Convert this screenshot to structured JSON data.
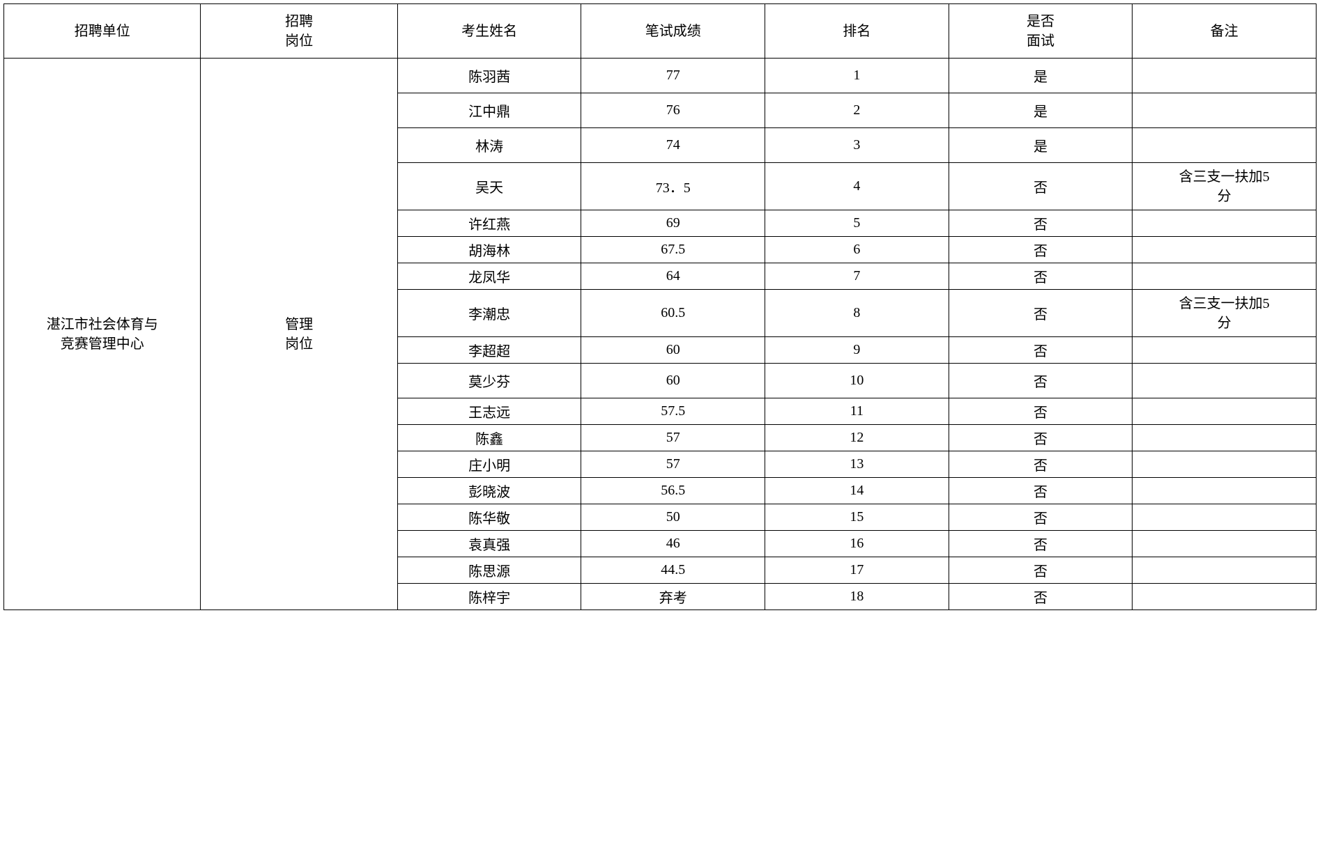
{
  "table": {
    "columns": {
      "unit": "招聘单位",
      "position_line1": "招聘",
      "position_line2": "岗位",
      "name": "考生姓名",
      "score": "笔试成绩",
      "rank": "排名",
      "interview_line1": "是否",
      "interview_line2": "面试",
      "remark": "备注"
    },
    "unit_line1": "湛江市社会体育与",
    "unit_line2": "竞赛管理中心",
    "position_line1": "管理",
    "position_line2": "岗位",
    "rows": [
      {
        "name": "陈羽茜",
        "score": "77",
        "rank": "1",
        "interview": "是",
        "remark": "",
        "height": "medium"
      },
      {
        "name": "江中鼎",
        "score": "76",
        "rank": "2",
        "interview": "是",
        "remark": "",
        "height": "medium"
      },
      {
        "name": "林涛",
        "score": "74",
        "rank": "3",
        "interview": "是",
        "remark": "",
        "height": "medium"
      },
      {
        "name": "吴天",
        "score": "73．5",
        "rank": "4",
        "interview": "否",
        "remark_line1": "含三支一扶加5",
        "remark_line2": "分",
        "height": "tall"
      },
      {
        "name": "许红燕",
        "score": "69",
        "rank": "5",
        "interview": "否",
        "remark": "",
        "height": "short"
      },
      {
        "name": "胡海林",
        "score": "67.5",
        "rank": "6",
        "interview": "否",
        "remark": "",
        "height": "short"
      },
      {
        "name": "龙凤华",
        "score": "64",
        "rank": "7",
        "interview": "否",
        "remark": "",
        "height": "short"
      },
      {
        "name": "李潮忠",
        "score": "60.5",
        "rank": "8",
        "interview": "否",
        "remark_line1": "含三支一扶加5",
        "remark_line2": "分",
        "height": "tall"
      },
      {
        "name": "李超超",
        "score": "60",
        "rank": "9",
        "interview": "否",
        "remark": "",
        "height": "short"
      },
      {
        "name": "莫少芬",
        "score": "60",
        "rank": "10",
        "interview": "否",
        "remark": "",
        "height": "medium"
      },
      {
        "name": "王志远",
        "score": "57.5",
        "rank": "11",
        "interview": "否",
        "remark": "",
        "height": "short"
      },
      {
        "name": "陈鑫",
        "score": "57",
        "rank": "12",
        "interview": "否",
        "remark": "",
        "height": "short"
      },
      {
        "name": "庄小明",
        "score": "57",
        "rank": "13",
        "interview": "否",
        "remark": "",
        "height": "short"
      },
      {
        "name": "彭晓波",
        "score": "56.5",
        "rank": "14",
        "interview": "否",
        "remark": "",
        "height": "short"
      },
      {
        "name": "陈华敬",
        "score": "50",
        "rank": "15",
        "interview": "否",
        "remark": "",
        "height": "short"
      },
      {
        "name": "袁真强",
        "score": "46",
        "rank": "16",
        "interview": "否",
        "remark": "",
        "height": "short"
      },
      {
        "name": "陈思源",
        "score": "44.5",
        "rank": "17",
        "interview": "否",
        "remark": "",
        "height": "short"
      },
      {
        "name": "陈梓宇",
        "score": "弃考",
        "rank": "18",
        "interview": "否",
        "remark": "",
        "height": "short"
      }
    ]
  }
}
